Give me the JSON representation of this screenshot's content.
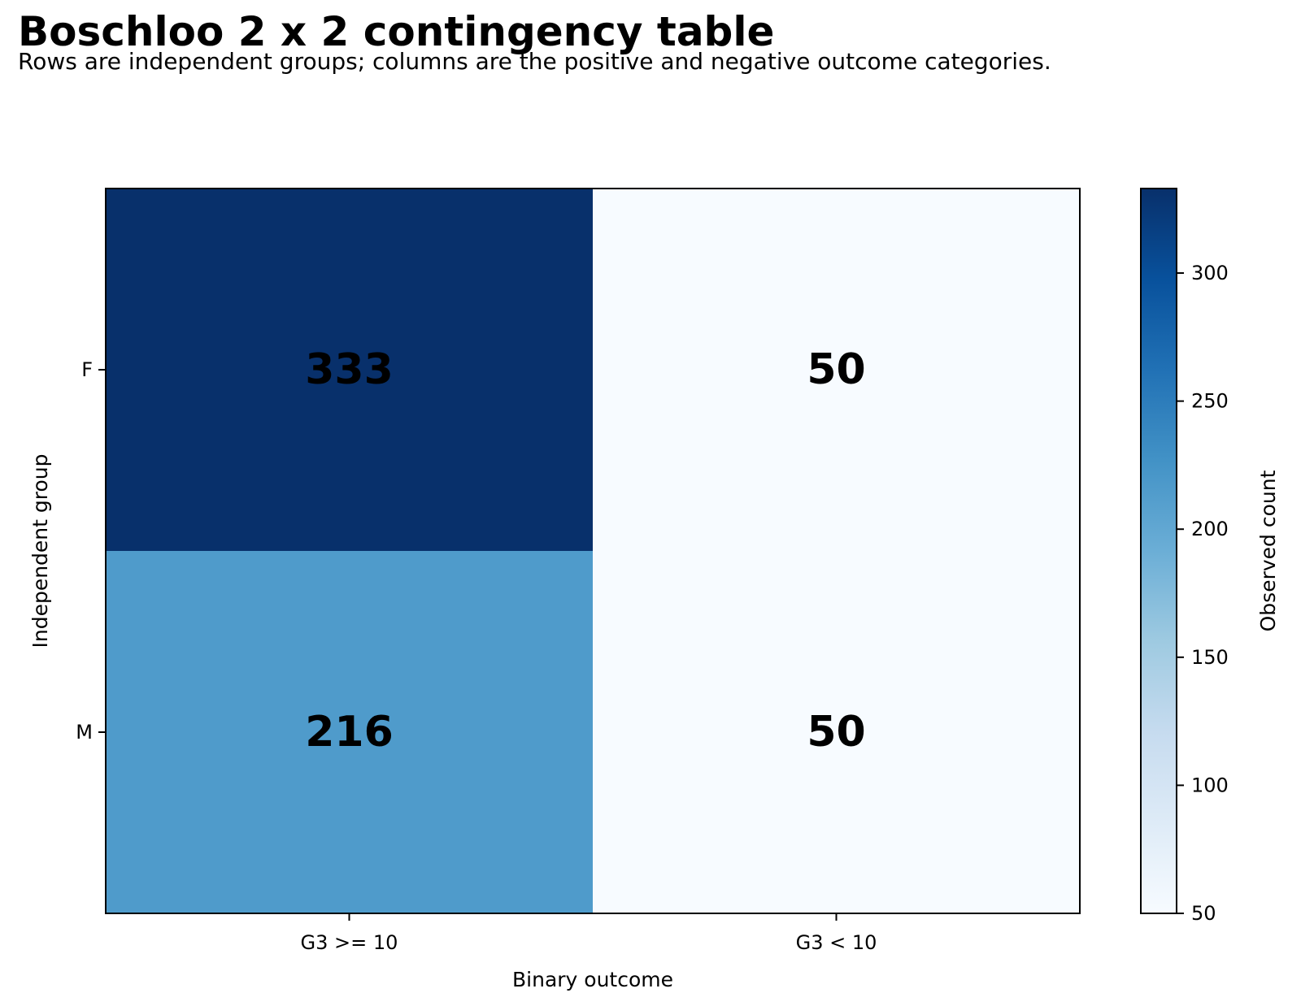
{
  "title": "Boschloo 2 x 2 contingency table",
  "subtitle": "Rows are independent groups; columns are the positive and negative outcome categories.",
  "chart_data": {
    "type": "heatmap",
    "rows": [
      "F",
      "M"
    ],
    "columns": [
      "G3 >= 10",
      "G3 < 10"
    ],
    "values": [
      [
        333,
        50
      ],
      [
        216,
        50
      ]
    ],
    "xlabel": "Binary outcome",
    "ylabel": "Independent group",
    "colorbar": {
      "label": "Observed count",
      "range": [
        50,
        333
      ],
      "ticks": [
        50,
        100,
        150,
        200,
        250,
        300
      ],
      "colormap": "Blues"
    }
  }
}
